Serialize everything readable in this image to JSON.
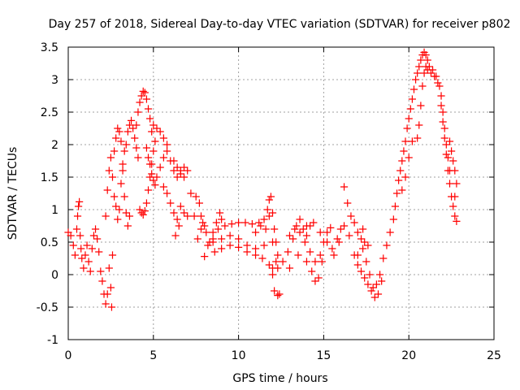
{
  "chart_data": {
    "type": "scatter",
    "title": "Day 257 of 2018, Sidereal Day-to-day VTEC variation (SDTVAR) for receiver p802",
    "xlabel": "GPS time / hours",
    "ylabel": "SDTVAR / TECUs",
    "xlim": [
      0,
      25
    ],
    "ylim": [
      -1,
      3.5
    ],
    "xticks": [
      "0",
      "5",
      "10",
      "15",
      "20",
      "25"
    ],
    "yticks": [
      "-1",
      "-0.5",
      "0",
      "0.5",
      "1",
      "1.5",
      "2",
      "2.5",
      "3",
      "3.5"
    ],
    "grid": true,
    "marker": "plus",
    "color": "#ff0000",
    "series": [
      {
        "name": "SDTVAR",
        "points": [
          [
            0.0,
            0.65
          ],
          [
            0.15,
            0.6
          ],
          [
            0.3,
            0.45
          ],
          [
            0.4,
            0.3
          ],
          [
            0.5,
            0.7
          ],
          [
            0.55,
            0.9
          ],
          [
            0.6,
            1.05
          ],
          [
            0.65,
            1.12
          ],
          [
            0.7,
            0.6
          ],
          [
            0.75,
            0.4
          ],
          [
            0.8,
            0.25
          ],
          [
            0.9,
            0.1
          ],
          [
            1.0,
            0.3
          ],
          [
            1.1,
            0.45
          ],
          [
            1.2,
            0.2
          ],
          [
            1.3,
            0.05
          ],
          [
            1.4,
            0.4
          ],
          [
            1.5,
            0.6
          ],
          [
            1.6,
            0.7
          ],
          [
            1.7,
            0.55
          ],
          [
            1.8,
            0.35
          ],
          [
            1.9,
            0.05
          ],
          [
            2.0,
            -0.1
          ],
          [
            2.1,
            -0.3
          ],
          [
            2.2,
            -0.45
          ],
          [
            2.3,
            -0.3
          ],
          [
            2.4,
            0.1
          ],
          [
            2.5,
            -0.2
          ],
          [
            2.55,
            -0.5
          ],
          [
            2.6,
            0.3
          ],
          [
            2.2,
            0.9
          ],
          [
            2.3,
            1.3
          ],
          [
            2.4,
            1.6
          ],
          [
            2.5,
            1.8
          ],
          [
            2.6,
            1.5
          ],
          [
            2.7,
            1.2
          ],
          [
            2.8,
            1.05
          ],
          [
            2.9,
            0.85
          ],
          [
            3.0,
            1.0
          ],
          [
            3.1,
            1.4
          ],
          [
            3.2,
            1.7
          ],
          [
            3.3,
            1.9
          ],
          [
            3.4,
            2.0
          ],
          [
            3.5,
            2.2
          ],
          [
            3.6,
            2.3
          ],
          [
            3.7,
            2.37
          ],
          [
            3.8,
            2.25
          ],
          [
            3.9,
            2.1
          ],
          [
            4.0,
            1.95
          ],
          [
            4.1,
            1.8
          ],
          [
            2.7,
            1.9
          ],
          [
            2.8,
            2.1
          ],
          [
            2.9,
            2.25
          ],
          [
            3.0,
            2.2
          ],
          [
            3.1,
            2.05
          ],
          [
            3.2,
            1.6
          ],
          [
            3.3,
            1.2
          ],
          [
            3.4,
            0.95
          ],
          [
            3.5,
            0.75
          ],
          [
            3.6,
            0.9
          ],
          [
            4.0,
            2.3
          ],
          [
            4.1,
            2.5
          ],
          [
            4.2,
            2.65
          ],
          [
            4.3,
            2.75
          ],
          [
            4.4,
            2.82
          ],
          [
            4.5,
            2.8
          ],
          [
            4.6,
            2.7
          ],
          [
            4.7,
            2.55
          ],
          [
            4.8,
            2.4
          ],
          [
            4.9,
            2.2
          ],
          [
            4.2,
            1.0
          ],
          [
            4.3,
            0.95
          ],
          [
            4.4,
            0.92
          ],
          [
            4.5,
            0.98
          ],
          [
            4.6,
            1.1
          ],
          [
            4.7,
            1.3
          ],
          [
            4.8,
            1.5
          ],
          [
            4.9,
            1.7
          ],
          [
            5.0,
            1.9
          ],
          [
            5.1,
            2.05
          ],
          [
            4.6,
            1.95
          ],
          [
            4.7,
            1.8
          ],
          [
            4.8,
            1.7
          ],
          [
            4.9,
            1.55
          ],
          [
            5.0,
            1.45
          ],
          [
            5.1,
            1.38
          ],
          [
            5.2,
            1.5
          ],
          [
            5.4,
            1.65
          ],
          [
            5.6,
            1.8
          ],
          [
            5.8,
            2.0
          ],
          [
            5.0,
            2.3
          ],
          [
            5.2,
            2.25
          ],
          [
            5.4,
            2.2
          ],
          [
            5.6,
            2.1
          ],
          [
            5.8,
            1.9
          ],
          [
            6.0,
            1.75
          ],
          [
            6.2,
            1.6
          ],
          [
            6.4,
            1.5
          ],
          [
            6.6,
            1.6
          ],
          [
            6.8,
            1.65
          ],
          [
            5.6,
            1.35
          ],
          [
            5.8,
            1.25
          ],
          [
            6.0,
            1.1
          ],
          [
            6.2,
            0.95
          ],
          [
            6.4,
            0.85
          ],
          [
            6.5,
            0.75
          ],
          [
            6.3,
            0.6
          ],
          [
            6.6,
            1.05
          ],
          [
            6.8,
            0.95
          ],
          [
            7.0,
            0.9
          ],
          [
            6.2,
            1.75
          ],
          [
            6.4,
            1.65
          ],
          [
            6.6,
            1.55
          ],
          [
            6.8,
            1.5
          ],
          [
            7.0,
            1.6
          ],
          [
            7.2,
            1.25
          ],
          [
            7.4,
            0.9
          ],
          [
            7.6,
            0.55
          ],
          [
            7.8,
            0.7
          ],
          [
            8.0,
            0.75
          ],
          [
            7.5,
            1.2
          ],
          [
            7.7,
            1.1
          ],
          [
            7.8,
            0.9
          ],
          [
            7.9,
            0.8
          ],
          [
            8.1,
            0.65
          ],
          [
            8.3,
            0.5
          ],
          [
            8.5,
            0.55
          ],
          [
            8.7,
            0.8
          ],
          [
            8.9,
            0.95
          ],
          [
            9.0,
            0.85
          ],
          [
            8.0,
            0.28
          ],
          [
            8.2,
            0.45
          ],
          [
            8.5,
            0.65
          ],
          [
            8.8,
            0.7
          ],
          [
            9.2,
            0.75
          ],
          [
            9.6,
            0.78
          ],
          [
            10.0,
            0.8
          ],
          [
            10.4,
            0.8
          ],
          [
            10.8,
            0.78
          ],
          [
            11.2,
            0.8
          ],
          [
            8.5,
            0.5
          ],
          [
            9.0,
            0.55
          ],
          [
            9.5,
            0.6
          ],
          [
            10.0,
            0.55
          ],
          [
            10.5,
            0.45
          ],
          [
            11.0,
            0.4
          ],
          [
            11.5,
            0.45
          ],
          [
            12.0,
            0.5
          ],
          [
            11.6,
            0.7
          ],
          [
            11.8,
            0.9
          ],
          [
            8.6,
            0.35
          ],
          [
            9.0,
            0.4
          ],
          [
            9.5,
            0.45
          ],
          [
            10.0,
            0.42
          ],
          [
            10.5,
            0.35
          ],
          [
            11.0,
            0.3
          ],
          [
            11.4,
            0.25
          ],
          [
            11.8,
            0.15
          ],
          [
            12.0,
            0.1
          ],
          [
            12.2,
            0.2
          ],
          [
            11.0,
            0.65
          ],
          [
            11.3,
            0.75
          ],
          [
            11.5,
            0.85
          ],
          [
            11.7,
            1.0
          ],
          [
            11.8,
            1.15
          ],
          [
            11.9,
            1.2
          ],
          [
            12.0,
            0.95
          ],
          [
            12.1,
            0.7
          ],
          [
            12.2,
            0.5
          ],
          [
            12.3,
            0.3
          ],
          [
            12.0,
            0.0
          ],
          [
            12.3,
            0.1
          ],
          [
            12.6,
            0.2
          ],
          [
            12.9,
            0.35
          ],
          [
            13.2,
            0.55
          ],
          [
            13.4,
            0.75
          ],
          [
            13.6,
            0.85
          ],
          [
            13.8,
            0.7
          ],
          [
            14.0,
            0.6
          ],
          [
            14.2,
            0.75
          ],
          [
            12.1,
            -0.25
          ],
          [
            12.3,
            -0.32
          ],
          [
            12.4,
            -0.3
          ],
          [
            13.0,
            0.1
          ],
          [
            13.5,
            0.3
          ],
          [
            14.0,
            0.2
          ],
          [
            14.3,
            0.05
          ],
          [
            14.5,
            -0.1
          ],
          [
            14.7,
            -0.05
          ],
          [
            14.9,
            0.2
          ],
          [
            13.0,
            0.6
          ],
          [
            13.3,
            0.7
          ],
          [
            13.6,
            0.65
          ],
          [
            13.9,
            0.5
          ],
          [
            14.2,
            0.35
          ],
          [
            14.5,
            0.2
          ],
          [
            14.8,
            0.3
          ],
          [
            15.0,
            0.5
          ],
          [
            15.2,
            0.65
          ],
          [
            15.4,
            0.72
          ],
          [
            14.0,
            0.75
          ],
          [
            14.4,
            0.8
          ],
          [
            14.8,
            0.65
          ],
          [
            15.2,
            0.5
          ],
          [
            15.5,
            0.4
          ],
          [
            15.8,
            0.55
          ],
          [
            16.0,
            0.7
          ],
          [
            16.2,
            0.75
          ],
          [
            15.6,
            0.3
          ],
          [
            15.9,
            0.5
          ],
          [
            16.2,
            1.35
          ],
          [
            16.4,
            1.1
          ],
          [
            16.6,
            0.9
          ],
          [
            16.8,
            0.8
          ],
          [
            17.0,
            0.65
          ],
          [
            17.2,
            0.55
          ],
          [
            17.4,
            0.5
          ],
          [
            17.6,
            0.45
          ],
          [
            17.3,
            0.7
          ],
          [
            17.0,
            0.3
          ],
          [
            16.5,
            0.6
          ],
          [
            16.8,
            0.3
          ],
          [
            17.0,
            0.15
          ],
          [
            17.2,
            0.05
          ],
          [
            17.4,
            -0.05
          ],
          [
            17.6,
            -0.15
          ],
          [
            17.8,
            -0.25
          ],
          [
            18.0,
            -0.35
          ],
          [
            18.2,
            -0.3
          ],
          [
            18.4,
            -0.1
          ],
          [
            17.3,
            0.4
          ],
          [
            17.5,
            0.2
          ],
          [
            17.7,
            0.0
          ],
          [
            17.9,
            -0.2
          ],
          [
            18.1,
            -0.15
          ],
          [
            18.3,
            0.0
          ],
          [
            18.5,
            0.25
          ],
          [
            18.7,
            0.45
          ],
          [
            18.9,
            0.65
          ],
          [
            19.1,
            0.85
          ],
          [
            19.2,
            1.05
          ],
          [
            19.3,
            1.25
          ],
          [
            19.4,
            1.45
          ],
          [
            19.5,
            1.6
          ],
          [
            19.6,
            1.75
          ],
          [
            19.7,
            1.9
          ],
          [
            19.8,
            2.05
          ],
          [
            19.9,
            2.25
          ],
          [
            20.0,
            2.4
          ],
          [
            20.1,
            2.55
          ],
          [
            20.2,
            2.7
          ],
          [
            20.3,
            2.85
          ],
          [
            20.4,
            3.0
          ],
          [
            20.5,
            3.1
          ],
          [
            20.6,
            3.2
          ],
          [
            20.7,
            3.3
          ],
          [
            20.8,
            3.38
          ],
          [
            20.9,
            3.42
          ],
          [
            21.0,
            3.38
          ],
          [
            21.1,
            3.3
          ],
          [
            20.5,
            2.1
          ],
          [
            20.6,
            2.3
          ],
          [
            20.7,
            2.6
          ],
          [
            20.8,
            2.9
          ],
          [
            20.9,
            3.1
          ],
          [
            21.0,
            3.2
          ],
          [
            21.1,
            3.15
          ],
          [
            21.3,
            3.1
          ],
          [
            21.5,
            3.05
          ],
          [
            21.7,
            2.95
          ],
          [
            21.2,
            3.2
          ],
          [
            21.4,
            3.15
          ],
          [
            21.6,
            3.05
          ],
          [
            21.8,
            2.9
          ],
          [
            21.9,
            2.75
          ],
          [
            22.0,
            2.5
          ],
          [
            22.1,
            2.25
          ],
          [
            22.2,
            2.0
          ],
          [
            22.3,
            1.8
          ],
          [
            22.4,
            1.6
          ],
          [
            21.9,
            2.6
          ],
          [
            22.0,
            2.35
          ],
          [
            22.1,
            2.1
          ],
          [
            22.2,
            1.85
          ],
          [
            22.3,
            1.6
          ],
          [
            22.4,
            1.4
          ],
          [
            22.5,
            1.2
          ],
          [
            22.6,
            1.05
          ],
          [
            22.7,
            0.9
          ],
          [
            22.8,
            0.82
          ],
          [
            22.4,
            2.05
          ],
          [
            22.5,
            1.9
          ],
          [
            22.6,
            1.75
          ],
          [
            22.7,
            1.6
          ],
          [
            22.8,
            1.4
          ],
          [
            22.7,
            1.2
          ],
          [
            19.6,
            1.3
          ],
          [
            19.8,
            1.5
          ],
          [
            20.0,
            1.8
          ],
          [
            20.2,
            2.05
          ]
        ]
      }
    ]
  }
}
